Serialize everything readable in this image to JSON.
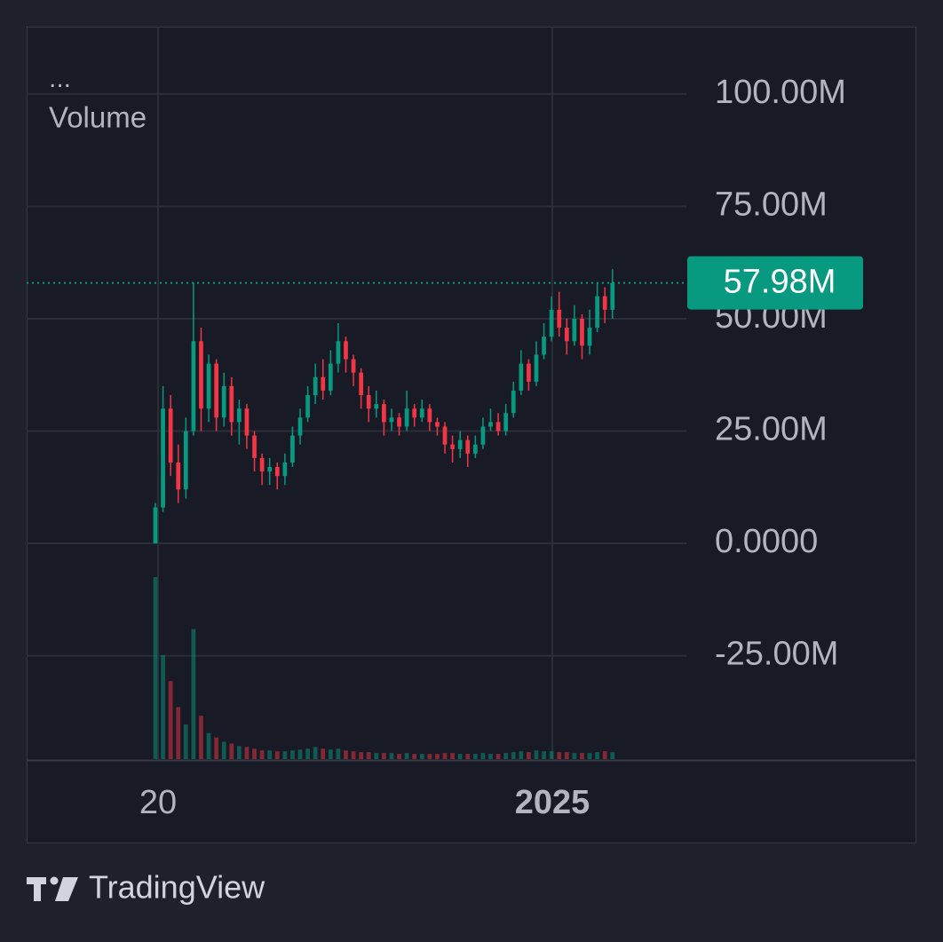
{
  "chart_data": {
    "type": "candlestick",
    "legend_menu": "...",
    "indicator_label": "Volume",
    "brand": "TradingView",
    "up_color": "#089981",
    "down_color": "#f23645",
    "grid": true,
    "ylim": [
      -48000000,
      115000000
    ],
    "yticks": [
      {
        "value": 100000000,
        "label": "100.00M"
      },
      {
        "value": 75000000,
        "label": "75.00M"
      },
      {
        "value": 50000000,
        "label": "50.00M"
      },
      {
        "value": 25000000,
        "label": "25.00M"
      },
      {
        "value": 0,
        "label": "0.0000"
      },
      {
        "value": -25000000,
        "label": "-25.00M"
      }
    ],
    "xlim": [
      -16.9,
      69.7
    ],
    "xticks": [
      {
        "value": 0.35,
        "label": "20"
      },
      {
        "value": 52.1,
        "label": "2025"
      }
    ],
    "last_price": {
      "value": 57980000,
      "label": "57.98M"
    },
    "x": [
      0,
      1,
      2,
      3,
      4,
      5,
      6,
      7,
      8,
      9,
      10,
      11,
      12,
      13,
      14,
      15,
      16,
      17,
      18,
      19,
      20,
      21,
      22,
      23,
      24,
      25,
      26,
      27,
      28,
      29,
      30,
      31,
      32,
      33,
      34,
      35,
      36,
      37,
      38,
      39,
      40,
      41,
      42,
      43,
      44,
      45,
      46,
      47,
      48,
      49,
      50,
      51,
      52,
      53,
      54,
      55,
      56,
      57,
      58,
      59,
      60
    ],
    "open": [
      0,
      8000000,
      30000000,
      18000000,
      12000000,
      25000000,
      45000000,
      30000000,
      40000000,
      28000000,
      35000000,
      27000000,
      30000000,
      24000000,
      19000000,
      16000000,
      17000000,
      15000000,
      18000000,
      24000000,
      28000000,
      33000000,
      37000000,
      34000000,
      40000000,
      45000000,
      41000000,
      38000000,
      33000000,
      30000000,
      31000000,
      27000000,
      28000000,
      26000000,
      30000000,
      28000000,
      30000000,
      27000000,
      26000000,
      22000000,
      21000000,
      23000000,
      20000000,
      22000000,
      26000000,
      27000000,
      25000000,
      29000000,
      34000000,
      40000000,
      36000000,
      42000000,
      46000000,
      52000000,
      48000000,
      45000000,
      50000000,
      44000000,
      48000000,
      55000000,
      52000000
    ],
    "high": [
      9000000,
      35000000,
      33000000,
      22000000,
      28000000,
      58000000,
      48000000,
      42000000,
      41000000,
      38000000,
      37000000,
      32000000,
      31000000,
      25000000,
      20000000,
      19000000,
      18000000,
      20000000,
      26000000,
      30000000,
      35000000,
      40000000,
      41000000,
      43000000,
      49000000,
      46000000,
      42000000,
      39000000,
      35000000,
      34000000,
      32000000,
      30000000,
      29000000,
      34000000,
      31000000,
      32000000,
      31000000,
      28000000,
      27000000,
      24000000,
      25000000,
      24000000,
      24000000,
      28000000,
      30000000,
      29000000,
      31000000,
      36000000,
      43000000,
      41000000,
      45000000,
      49000000,
      55000000,
      56000000,
      50000000,
      53000000,
      51000000,
      52000000,
      58000000,
      57000000,
      61000000
    ],
    "low": [
      0,
      7000000,
      15000000,
      9000000,
      10000000,
      24000000,
      25000000,
      27000000,
      25000000,
      26000000,
      24000000,
      22000000,
      21000000,
      16000000,
      13000000,
      13000000,
      12000000,
      13000000,
      17000000,
      22000000,
      27000000,
      31000000,
      32000000,
      33000000,
      38000000,
      38000000,
      35000000,
      30000000,
      27000000,
      28000000,
      24000000,
      25000000,
      24000000,
      25000000,
      26000000,
      27000000,
      25000000,
      24000000,
      20000000,
      18000000,
      19000000,
      17000000,
      19000000,
      21000000,
      25000000,
      24000000,
      24000000,
      28000000,
      33000000,
      34000000,
      35000000,
      41000000,
      45000000,
      46000000,
      42000000,
      44000000,
      41000000,
      42000000,
      47000000,
      49000000,
      50000000
    ],
    "close": [
      8000000,
      30000000,
      18000000,
      12000000,
      25000000,
      45000000,
      30000000,
      40000000,
      28000000,
      35000000,
      27000000,
      30000000,
      24000000,
      19000000,
      16000000,
      17000000,
      15000000,
      18000000,
      24000000,
      28000000,
      33000000,
      37000000,
      34000000,
      40000000,
      45000000,
      41000000,
      38000000,
      33000000,
      30000000,
      31000000,
      27000000,
      28000000,
      26000000,
      30000000,
      28000000,
      30000000,
      27000000,
      26000000,
      22000000,
      21000000,
      23000000,
      20000000,
      22000000,
      26000000,
      27000000,
      25000000,
      29000000,
      34000000,
      40000000,
      36000000,
      42000000,
      46000000,
      52000000,
      48000000,
      45000000,
      50000000,
      44000000,
      48000000,
      55000000,
      52000000,
      57980000
    ],
    "volume": [
      210,
      120,
      90,
      60,
      40,
      150,
      50,
      30,
      25,
      20,
      18,
      15,
      14,
      12,
      10,
      10,
      9,
      9,
      10,
      11,
      12,
      14,
      12,
      11,
      12,
      10,
      9,
      8,
      8,
      7,
      7,
      7,
      6,
      7,
      6,
      6,
      6,
      6,
      7,
      7,
      6,
      6,
      6,
      7,
      6,
      6,
      7,
      8,
      9,
      8,
      10,
      9,
      9,
      8,
      8,
      7,
      7,
      7,
      8,
      9,
      8
    ]
  }
}
